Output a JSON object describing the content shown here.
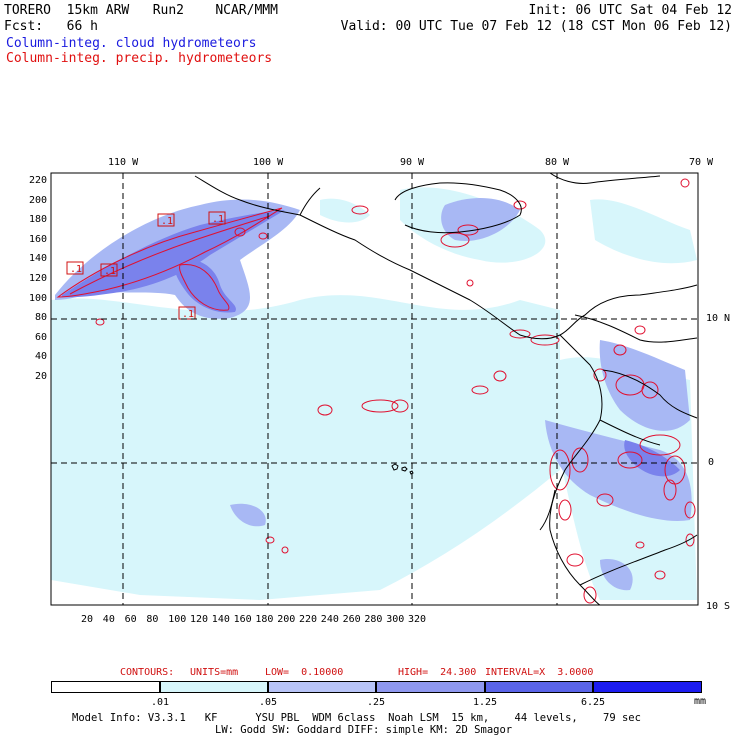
{
  "header": {
    "line1_left": "TORERO  15km ARW   Run2    NCAR/MMM",
    "line1_right": "Init: 06 UTC Sat 04 Feb 12",
    "line2_left": "Fcst:   66 h",
    "line2_right": "Valid: 00 UTC Tue 07 Feb 12 (18 CST Mon 06 Feb 12)",
    "legend_blue": "Column-integ. cloud hydrometeors",
    "legend_red": "Column-integ. precip. hydrometeors"
  },
  "map": {
    "lon_labels": [
      "110 W",
      "100 W",
      "90 W",
      "80 W",
      "70 W"
    ],
    "lat_labels": [
      "10 N",
      "0",
      "10 S"
    ],
    "y_ticks": [
      "220",
      "200",
      "180",
      "160",
      "140",
      "120",
      "100",
      "80",
      "60",
      "40",
      "20"
    ],
    "x_ticks": [
      "20",
      "40",
      "60",
      "80",
      "100",
      "120",
      "140",
      "160",
      "180",
      "200",
      "220",
      "240",
      "260",
      "280",
      "300",
      "320"
    ],
    "contour_labels": [
      ".1",
      ".1",
      ".1",
      ".1",
      ".1"
    ],
    "colors": {
      "ocean": "#ffffff",
      "cloud_light": "#d7f6fb",
      "cloud_mid": "#a8b8f4",
      "cloud_high": "#7a82ec",
      "precip_contour": "#e01030",
      "coast": "#000000"
    }
  },
  "contours_info": {
    "label": "CONTOURS:",
    "units": "UNITS=mm",
    "low": "LOW=  0.10000",
    "high": "HIGH=  24.300",
    "interval": "INTERVAL=X  3.0000"
  },
  "colorbar": {
    "labels": [
      ".01",
      ".05",
      ".25",
      "1.25",
      "6.25"
    ],
    "unit": "mm",
    "colors": [
      "#ffffff",
      "#d7f6fb",
      "#b8c4f7",
      "#8f98ef",
      "#5a64e8",
      "#1c1cf0"
    ]
  },
  "footer": {
    "line1": "Model Info: V3.3.1   KF      YSU PBL  WDM 6class  Noah LSM  15 km,    44 levels,    79 sec",
    "line2": "LW: Godd SW: Goddard DIFF: simple KM: 2D Smagor"
  }
}
